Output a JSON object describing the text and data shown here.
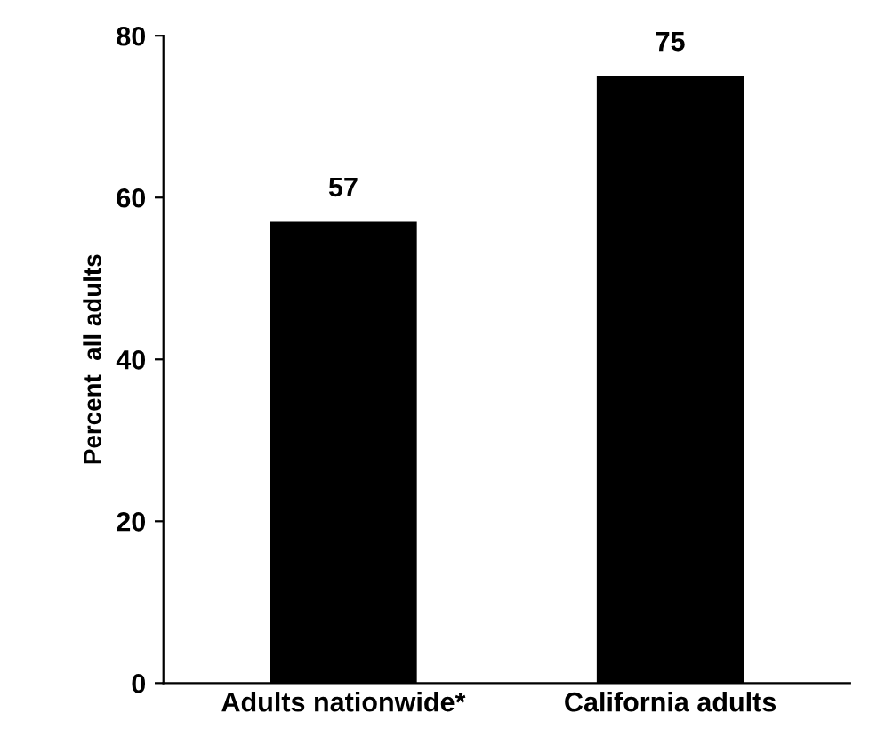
{
  "chart_data": {
    "type": "bar",
    "ylabel": "Percent  all adults",
    "categories": [
      "Adults nationwide*",
      "California adults"
    ],
    "values": [
      57,
      75
    ],
    "color": "#000000",
    "ylim": [
      0,
      80
    ],
    "yticks": [
      0,
      20,
      40,
      60,
      80
    ],
    "grid": false,
    "data_labels": true
  }
}
